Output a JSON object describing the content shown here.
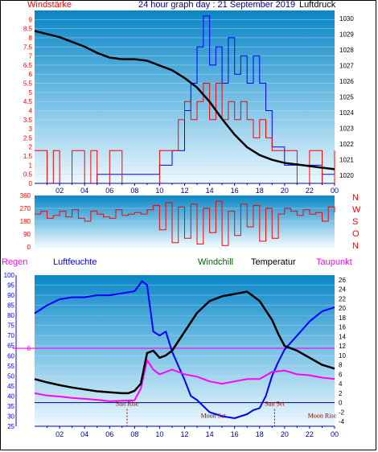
{
  "header": {
    "left_label": "Windstärke",
    "title": "24 hour graph day : 21 September 2019",
    "right_label": "Luftdruck"
  },
  "colors": {
    "wind": "#ff0000",
    "gust": "#0000ff",
    "pressure": "#000000",
    "humidity": "#0000ff",
    "temperature": "#000000",
    "dewpoint": "#ff00ff",
    "windchill": "#006600",
    "reference_line": "#ff00ff",
    "moon_marker": "#990000"
  },
  "chart_data": [
    {
      "type": "line",
      "name": "wind-pressure",
      "y_left_label": "Windstärke",
      "y_right_label": "Luftdruck",
      "x_ticks": [
        "02",
        "04",
        "06",
        "08",
        "10",
        "12",
        "14",
        "16",
        "18",
        "20",
        "22",
        "00"
      ],
      "y_left_ticks": [
        "0",
        "0.5",
        "1",
        "1.5",
        "2",
        "2.5",
        "3",
        "3.5",
        "4",
        "4.5",
        "5",
        "5.5",
        "6",
        "6.5",
        "7",
        "7.5",
        "8",
        "8.5",
        "9"
      ],
      "y_right_ticks": [
        "1020",
        "1021",
        "1022",
        "1023",
        "1024",
        "1025",
        "1026",
        "1027",
        "1028",
        "1029",
        "1030"
      ],
      "y_left_lim": [
        0,
        9.5
      ],
      "y_right_lim": [
        1019.5,
        1030.5
      ],
      "x_lim": [
        0,
        24
      ],
      "pressure": {
        "x": [
          0,
          1,
          2,
          3,
          4,
          5,
          6,
          7,
          8,
          9,
          10,
          11,
          12,
          13,
          14,
          15,
          16,
          17,
          18,
          19,
          20,
          21,
          22,
          23,
          24
        ],
        "y": [
          1029.2,
          1029.0,
          1028.8,
          1028.5,
          1028.2,
          1027.8,
          1027.5,
          1027.4,
          1027.4,
          1027.3,
          1027.0,
          1026.7,
          1026.2,
          1025.6,
          1024.7,
          1023.6,
          1022.6,
          1021.8,
          1021.3,
          1021.0,
          1020.8,
          1020.7,
          1020.6,
          1020.5,
          1020.4
        ]
      },
      "wind_avg": {
        "x": [
          0,
          1,
          1.5,
          2,
          3,
          4,
          4.5,
          5,
          6,
          7,
          8,
          9,
          10,
          11,
          11.5,
          12,
          12.5,
          13,
          13.5,
          14,
          14.5,
          15,
          15.5,
          16,
          16.5,
          17,
          17.5,
          18,
          18.5,
          19,
          19.5,
          20,
          21,
          22,
          23,
          24
        ],
        "y": [
          1.8,
          0,
          1.8,
          0,
          1.8,
          0,
          1.8,
          0,
          1.8,
          0,
          0,
          0,
          1.8,
          1.8,
          3.5,
          4.5,
          3.5,
          4.5,
          5.5,
          3.5,
          5.5,
          3.5,
          4.5,
          3.5,
          4.5,
          3.5,
          2.5,
          3.5,
          2.5,
          1.8,
          1.8,
          1.8,
          0,
          1.8,
          0,
          1.8
        ]
      },
      "wind_gust": {
        "x": [
          0,
          5,
          10,
          11,
          12,
          12.5,
          13,
          13.5,
          14,
          14.5,
          15,
          15.5,
          16,
          16.5,
          17,
          17.5,
          18,
          18.5,
          19,
          20,
          21,
          22,
          23,
          24
        ],
        "y": [
          0,
          0.5,
          1.0,
          1.8,
          4.0,
          5.5,
          7.5,
          9.2,
          6.5,
          7.5,
          5.5,
          8.0,
          6.0,
          7.0,
          5.5,
          7.0,
          5.5,
          4.0,
          2.0,
          1.0,
          1.0,
          1.0,
          0.5,
          0.5
        ]
      }
    },
    {
      "type": "line",
      "name": "wind-direction",
      "y_left_ticks": [
        "0",
        "90",
        "180",
        "270",
        "360"
      ],
      "y_left_lim": [
        0,
        360
      ],
      "direction_labels": [
        "N",
        "W",
        "S",
        "O",
        "N"
      ],
      "x_lim": [
        0,
        24
      ],
      "direction": {
        "x": [
          0,
          0.5,
          1,
          1.5,
          2,
          2.5,
          3,
          3.5,
          4,
          4.5,
          5,
          5.5,
          6,
          6.5,
          7,
          7.5,
          8,
          8.5,
          9,
          9.5,
          10,
          10.5,
          11,
          11.5,
          12,
          12.5,
          13,
          13.5,
          14,
          14.5,
          15,
          15.5,
          16,
          16.5,
          17,
          17.5,
          18,
          18.5,
          19,
          19.5,
          20,
          20.5,
          21,
          21.5,
          22,
          22.5,
          23,
          23.5,
          24
        ],
        "y": [
          230,
          250,
          200,
          220,
          250,
          210,
          260,
          200,
          180,
          250,
          230,
          210,
          200,
          260,
          220,
          230,
          240,
          230,
          260,
          290,
          120,
          310,
          30,
          280,
          60,
          300,
          20,
          270,
          100,
          320,
          10,
          250,
          80,
          300,
          140,
          290,
          40,
          270,
          60,
          230,
          270,
          250,
          220,
          260,
          230,
          240,
          180,
          280,
          240
        ]
      }
    },
    {
      "type": "line",
      "name": "temperature-humidity",
      "left_labels": [
        "Regen",
        "Luftfeuchte"
      ],
      "right_labels": [
        "Windchill",
        "Temperatur",
        "Taupunkt"
      ],
      "y_left_ticks": [
        "25",
        "30",
        "35",
        "40",
        "45",
        "50",
        "55",
        "60",
        "65",
        "70",
        "75",
        "80",
        "85",
        "90",
        "95",
        "100"
      ],
      "y_left_lim": [
        25,
        100
      ],
      "y_right_ticks": [
        "-4",
        "-2",
        "0",
        "2",
        "4",
        "6",
        "8",
        "10",
        "12",
        "14",
        "16",
        "18",
        "20",
        "22",
        "24",
        "26"
      ],
      "y_right_lim": [
        -5,
        27
      ],
      "rain_scale_label": "0",
      "x_ticks": [
        "02",
        "04",
        "06",
        "08",
        "10",
        "12",
        "14",
        "16",
        "18",
        "20",
        "22",
        "00"
      ],
      "x_lim": [
        0,
        24
      ],
      "annotations": [
        "Sun Rise",
        "Moon Set",
        "Sun Set",
        "Moon Rise"
      ],
      "humidity": {
        "x": [
          0,
          1,
          2,
          3,
          4,
          5,
          6,
          7,
          8,
          8.6,
          9,
          9.5,
          10,
          10.5,
          11,
          11.5,
          12,
          12.5,
          13,
          14,
          15,
          16,
          17,
          17.5,
          18,
          18.5,
          19,
          19.5,
          20,
          21,
          22,
          23,
          24
        ],
        "y": [
          81,
          85,
          88,
          89,
          89,
          90,
          90,
          91,
          92,
          97,
          95,
          72,
          70,
          72,
          62,
          55,
          48,
          40,
          38,
          32,
          30,
          29,
          31,
          33,
          34,
          40,
          50,
          57,
          63,
          70,
          77,
          82,
          84
        ]
      },
      "temperature": {
        "x": [
          0,
          1,
          2,
          3,
          4,
          5,
          6,
          7,
          7.5,
          8,
          8.5,
          9,
          9.5,
          10,
          10.5,
          11,
          12,
          13,
          14,
          15,
          16,
          17,
          18,
          18.5,
          19,
          19.5,
          20,
          21,
          22,
          23,
          24
        ],
        "y": [
          5.0,
          4.3,
          3.7,
          3.2,
          2.8,
          2.4,
          2.2,
          2.0,
          2.0,
          2.5,
          4.0,
          10.5,
          11.0,
          9.5,
          10.0,
          11.0,
          15.0,
          19.0,
          21.5,
          22.5,
          23.0,
          23.5,
          21.5,
          19.5,
          17.5,
          14.5,
          12.0,
          11.0,
          9.5,
          8.0,
          7.2
        ]
      },
      "dewpoint": {
        "x": [
          0,
          1,
          2,
          3,
          4,
          5,
          6,
          7,
          8,
          8.5,
          9,
          9.5,
          10,
          11,
          12,
          13,
          14,
          15,
          16,
          17,
          18,
          19,
          20,
          21,
          22,
          23,
          24
        ],
        "y": [
          2.0,
          1.5,
          1.3,
          1.0,
          0.8,
          0.6,
          0.3,
          0.4,
          0.5,
          3.0,
          9.0,
          7.0,
          6.0,
          7.0,
          6.0,
          5.5,
          4.5,
          4.0,
          4.5,
          5.0,
          5.0,
          6.5,
          6.8,
          6.0,
          5.8,
          5.3,
          5.0
        ]
      },
      "reference_line_value": 11.5,
      "zero_line_value": 0
    }
  ]
}
